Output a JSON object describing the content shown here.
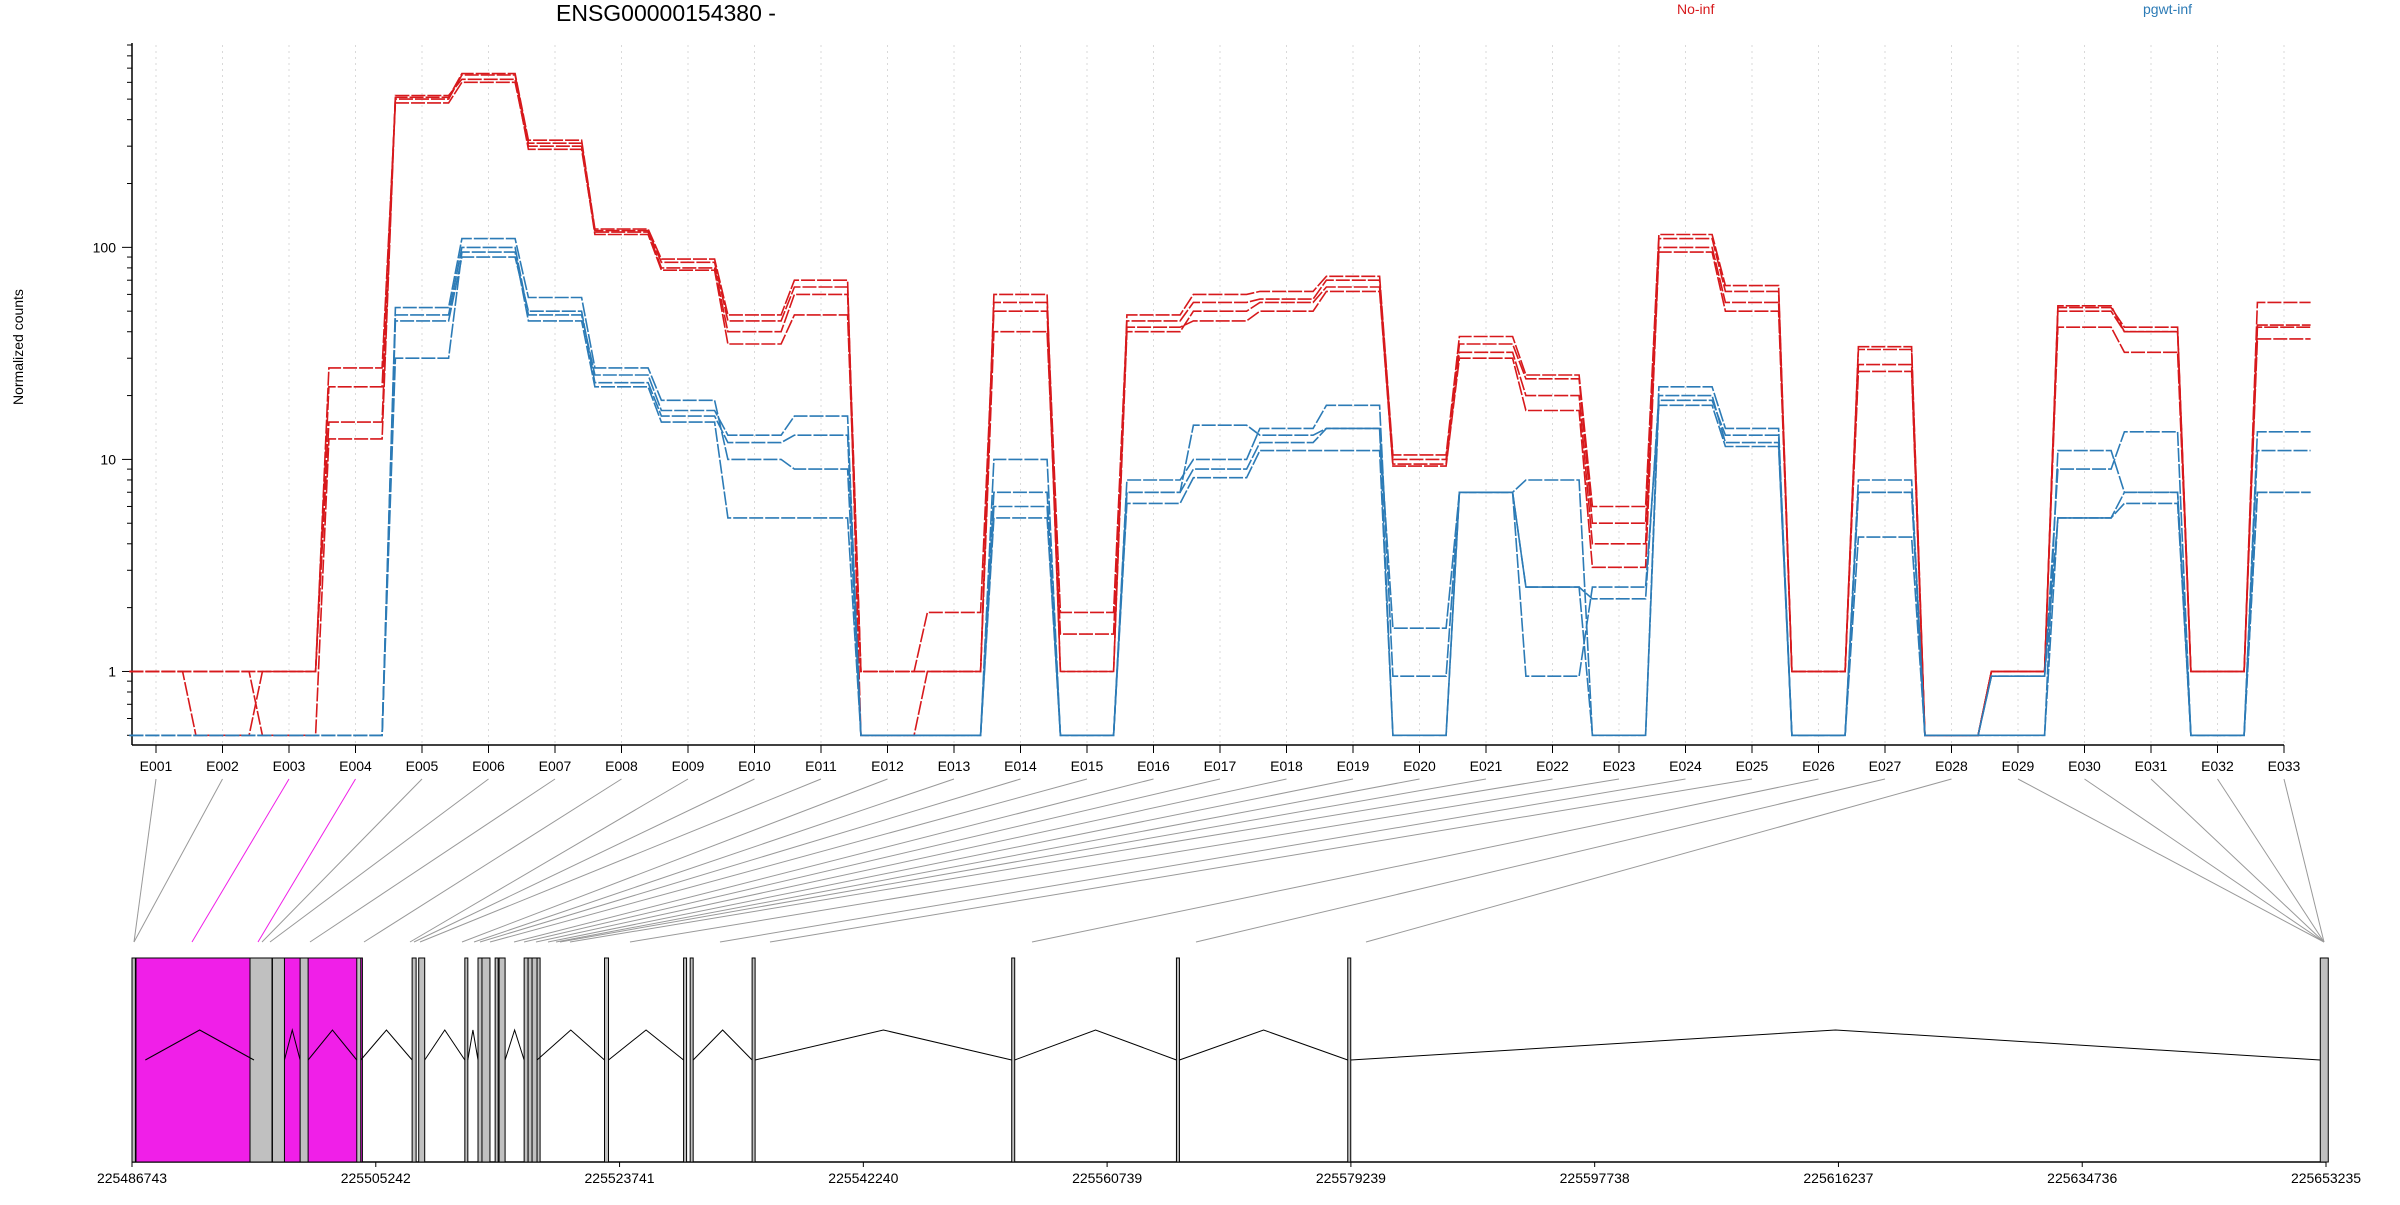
{
  "chart_data": {
    "type": "line",
    "title": "ENSG00000154380 -",
    "ylabel": "Normalized counts",
    "xlabel": "",
    "yscale": "log",
    "ylim": [
      0.45,
      900
    ],
    "yticks": [
      1,
      10,
      100
    ],
    "ytick_labels": [
      "1",
      "10",
      "100"
    ],
    "grid": "vertical-dotted",
    "colors": {
      "No-inf": "#d7191c",
      "pgwt-inf": "#2c7bb6",
      "highlight": "#f01fe8",
      "exon_box": "#c0c0c0"
    },
    "legend": [
      {
        "name": "No-inf",
        "color": "#d7191c",
        "position": "top"
      },
      {
        "name": "pgwt-inf",
        "color": "#2c7bb6",
        "position": "top-right"
      }
    ],
    "categories": [
      "E001",
      "E002",
      "E003",
      "E004",
      "E005",
      "E006",
      "E007",
      "E008",
      "E009",
      "E010",
      "E011",
      "E012",
      "E013",
      "E014",
      "E015",
      "E016",
      "E017",
      "E018",
      "E019",
      "E020",
      "E021",
      "E022",
      "E023",
      "E024",
      "E025",
      "E026",
      "E027",
      "E028",
      "E029",
      "E030",
      "E031",
      "E032",
      "E033"
    ],
    "series": [
      {
        "group": "No-inf",
        "values": [
          1,
          1,
          1,
          22,
          500,
          650,
          310,
          120,
          85,
          45,
          65,
          1,
          1,
          55,
          1.9,
          45,
          55,
          57,
          70,
          10,
          35,
          24,
          5,
          110,
          62,
          1,
          34,
          0.5,
          1,
          52,
          42,
          1,
          55
        ]
      },
      {
        "group": "No-inf",
        "values": [
          1,
          1,
          1,
          15,
          520,
          620,
          290,
          118,
          80,
          40,
          60,
          1,
          1.9,
          50,
          1,
          40,
          50,
          55,
          65,
          9.5,
          32,
          20,
          4,
          100,
          55,
          1,
          28,
          0.5,
          1,
          50,
          40,
          1,
          42
        ]
      },
      {
        "group": "No-inf",
        "values": [
          1,
          0.5,
          1,
          27,
          480,
          600,
          300,
          115,
          78,
          35,
          48,
          1,
          1,
          40,
          1.5,
          42,
          45,
          50,
          62,
          9.3,
          30,
          17,
          3.1,
          95,
          50,
          1,
          26,
          0.5,
          1,
          42,
          32,
          1,
          37
        ]
      },
      {
        "group": "No-inf",
        "values": [
          1,
          1,
          0.5,
          12.5,
          510,
          660,
          320,
          122,
          88,
          48,
          70,
          0.5,
          1,
          60,
          1,
          48,
          60,
          62,
          73,
          10.5,
          38,
          25,
          6,
          115,
          66,
          1,
          33,
          0.5,
          1,
          53,
          40,
          1,
          43
        ]
      },
      {
        "group": "pgwt-inf",
        "values": [
          0.5,
          0.5,
          0.5,
          0.5,
          48,
          100,
          48,
          25,
          17,
          13,
          16,
          0.5,
          0.5,
          10,
          0.5,
          8,
          10,
          14,
          18,
          0.95,
          7,
          8,
          0.5,
          22,
          14,
          0.5,
          8,
          0.5,
          0.95,
          9,
          13.5,
          0.5,
          13.5
        ]
      },
      {
        "group": "pgwt-inf",
        "values": [
          0.5,
          0.5,
          0.5,
          0.5,
          52,
          110,
          58,
          27,
          19,
          10,
          9,
          0.5,
          0.5,
          7,
          0.5,
          7,
          14.5,
          13,
          14,
          1.6,
          7,
          2.5,
          2.2,
          20,
          12,
          0.5,
          7,
          0.5,
          0.95,
          5.3,
          7,
          0.5,
          7
        ]
      },
      {
        "group": "pgwt-inf",
        "values": [
          0.5,
          0.5,
          0.5,
          0.5,
          30,
          95,
          45,
          22,
          15,
          5.3,
          5.3,
          0.5,
          0.5,
          5.3,
          0.5,
          6.2,
          8.2,
          11,
          11,
          0.5,
          7,
          0.95,
          2.5,
          18,
          11.5,
          0.5,
          4.3,
          0.5,
          0.5,
          5.3,
          6.2,
          0.5,
          7
        ]
      },
      {
        "group": "pgwt-inf",
        "values": [
          0.5,
          0.5,
          0.5,
          0.5,
          45,
          90,
          50,
          23,
          16,
          12,
          13,
          0.5,
          0.5,
          6,
          0.5,
          7,
          9,
          12,
          14,
          0.5,
          7,
          2.5,
          0.5,
          19,
          13,
          0.5,
          7,
          0.5,
          0.5,
          11,
          7,
          0.5,
          11
        ]
      }
    ],
    "gene_model": {
      "coord_min": 225486743,
      "coord_max": 225653235,
      "axis_ticks": [
        "225486743",
        "225505242",
        "225523741",
        "225542240",
        "225560739",
        "225579239",
        "225597738",
        "225616237",
        "225634736",
        "225653235"
      ],
      "exon_starts": [
        225486743,
        225487000,
        225487300,
        225496000,
        225495500,
        225496600,
        225496800,
        225497400,
        225499500,
        225503800,
        225508000,
        225508500,
        225512000,
        225513000,
        225513300,
        225514300,
        225514600,
        225516500,
        225516800,
        225517100,
        225522600,
        225528600,
        225529100,
        225533800,
        225553500,
        225566000,
        225579000,
        225652800
      ],
      "highlighted_exons": [
        "E003",
        "E004"
      ]
    }
  }
}
